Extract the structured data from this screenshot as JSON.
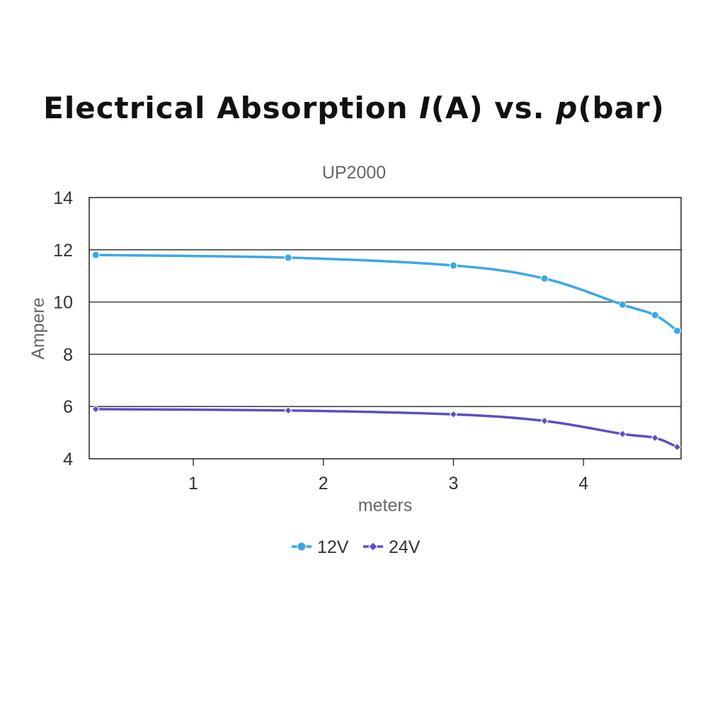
{
  "title": {
    "part1": "Electrical Absorption ",
    "var_i": "I",
    "part2": "(A) vs. ",
    "var_p": "p",
    "part3": "(bar)"
  },
  "chart_data": {
    "type": "line",
    "subtitle": "UP2000",
    "xlabel": "meters",
    "ylabel": "Ampere",
    "xlim": [
      0.2,
      4.75
    ],
    "ylim": [
      4,
      14
    ],
    "xticks": [
      1,
      2,
      3,
      4
    ],
    "yticks": [
      4,
      6,
      8,
      10,
      12,
      14
    ],
    "grid": "horizontal",
    "legend_position": "bottom",
    "series": [
      {
        "name": "12V",
        "color": "#3aa8e6",
        "marker": "circle",
        "x": [
          0.25,
          1.73,
          3.0,
          3.7,
          4.3,
          4.55,
          4.72
        ],
        "y": [
          11.8,
          11.7,
          11.4,
          10.9,
          9.9,
          9.5,
          8.9
        ]
      },
      {
        "name": "24V",
        "color": "#5b4fc4",
        "marker": "diamond",
        "x": [
          0.25,
          1.73,
          3.0,
          3.7,
          4.3,
          4.55,
          4.72
        ],
        "y": [
          5.9,
          5.85,
          5.7,
          5.45,
          4.95,
          4.8,
          4.45
        ]
      }
    ]
  }
}
